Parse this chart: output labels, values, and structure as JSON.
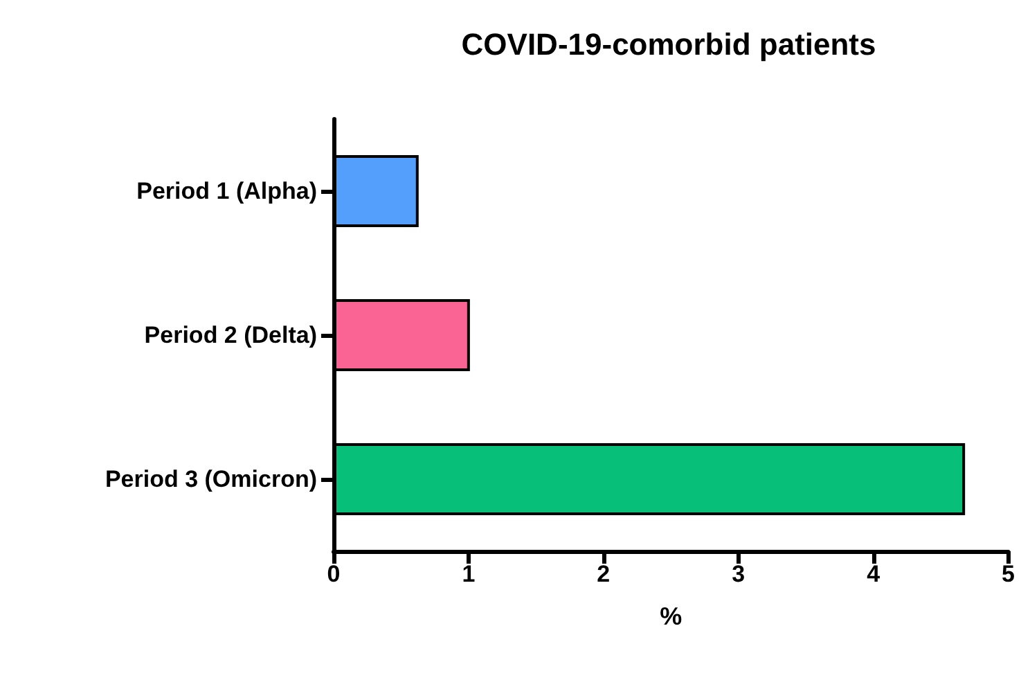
{
  "chart_data": {
    "type": "bar",
    "orientation": "horizontal",
    "title": "COVID-19-comorbid patients",
    "xlabel": "%",
    "categories": [
      "Period 1 (Alpha)",
      "Period 2 (Delta)",
      "Period 3 (Omicron)"
    ],
    "values": [
      0.63,
      1.01,
      4.68
    ],
    "colors": [
      "#559ffc",
      "#fa6494",
      "#07bf78"
    ],
    "xlim": [
      0,
      5
    ],
    "xticks": [
      0,
      1,
      2,
      3,
      4,
      5
    ],
    "grid": false
  }
}
